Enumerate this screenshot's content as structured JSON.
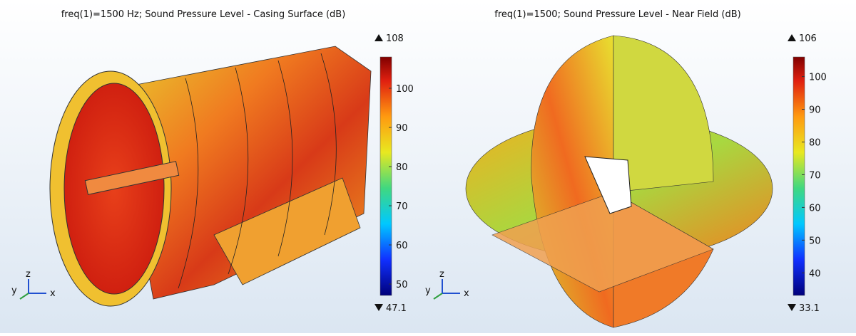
{
  "panels": [
    {
      "title": "freq(1)=1500 Hz; Sound Pressure Level - Casing Surface (dB)",
      "colorbar": {
        "max": 108,
        "min": 47.1,
        "ticks": [
          100,
          90,
          80,
          70,
          60,
          50
        ]
      },
      "axes": {
        "x": "x",
        "y": "y",
        "z": "z"
      }
    },
    {
      "title": "freq(1)=1500; Sound Pressure Level - Near Field (dB)",
      "colorbar": {
        "max": 106,
        "min": 33.1,
        "ticks": [
          100,
          90,
          80,
          70,
          60,
          50,
          40
        ]
      },
      "axes": {
        "x": "x",
        "y": "y",
        "z": "z"
      }
    }
  ]
}
